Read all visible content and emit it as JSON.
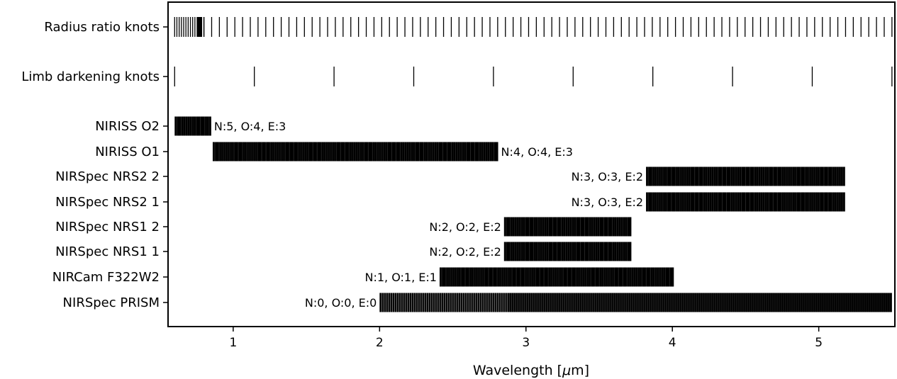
{
  "chart_data": {
    "type": "broken_barh",
    "xlabel": "Wavelength [μm]",
    "xlabel_parts": [
      "Wavelength [",
      "μ",
      "m]"
    ],
    "xlim": [
      0.555,
      5.52
    ],
    "xticks": [
      1,
      2,
      3,
      4,
      5
    ],
    "grid": false,
    "knot_rows": [
      {
        "label": "Radius ratio knots",
        "dense_range": [
          0.6,
          0.8
        ],
        "start": 0.6,
        "end": 5.5,
        "count": 90
      },
      {
        "label": "Limb darkening knots",
        "start": 0.6,
        "end": 5.5,
        "count": 10
      }
    ],
    "instrument_rows": [
      {
        "label": "NIRISS O2",
        "range": [
          0.6,
          0.85
        ],
        "annotation": "N:5, O:4, E:3",
        "annotation_side": "right"
      },
      {
        "label": "NIRISS O1",
        "range": [
          0.86,
          2.81
        ],
        "annotation": "N:4, O:4, E:3",
        "annotation_side": "right"
      },
      {
        "label": "NIRSpec NRS2 2",
        "range": [
          3.82,
          5.18
        ],
        "annotation": "N:3, O:3, E:2",
        "annotation_side": "left"
      },
      {
        "label": "NIRSpec NRS2 1",
        "range": [
          3.82,
          5.18
        ],
        "annotation": "N:3, O:3, E:2",
        "annotation_side": "left"
      },
      {
        "label": "NIRSpec NRS1 2",
        "range": [
          2.85,
          3.72
        ],
        "annotation": "N:2, O:2, E:2",
        "annotation_side": "left"
      },
      {
        "label": "NIRSpec NRS1 1",
        "range": [
          2.85,
          3.72
        ],
        "annotation": "N:2, O:2, E:2",
        "annotation_side": "left"
      },
      {
        "label": "NIRCam F322W2",
        "range": [
          2.41,
          4.01
        ],
        "annotation": "N:1, O:1, E:1",
        "annotation_side": "left"
      },
      {
        "label": "NIRSpec PRISM",
        "range": [
          2.0,
          5.5
        ],
        "annotation": "N:0, O:0, E:0",
        "annotation_side": "left"
      }
    ]
  }
}
